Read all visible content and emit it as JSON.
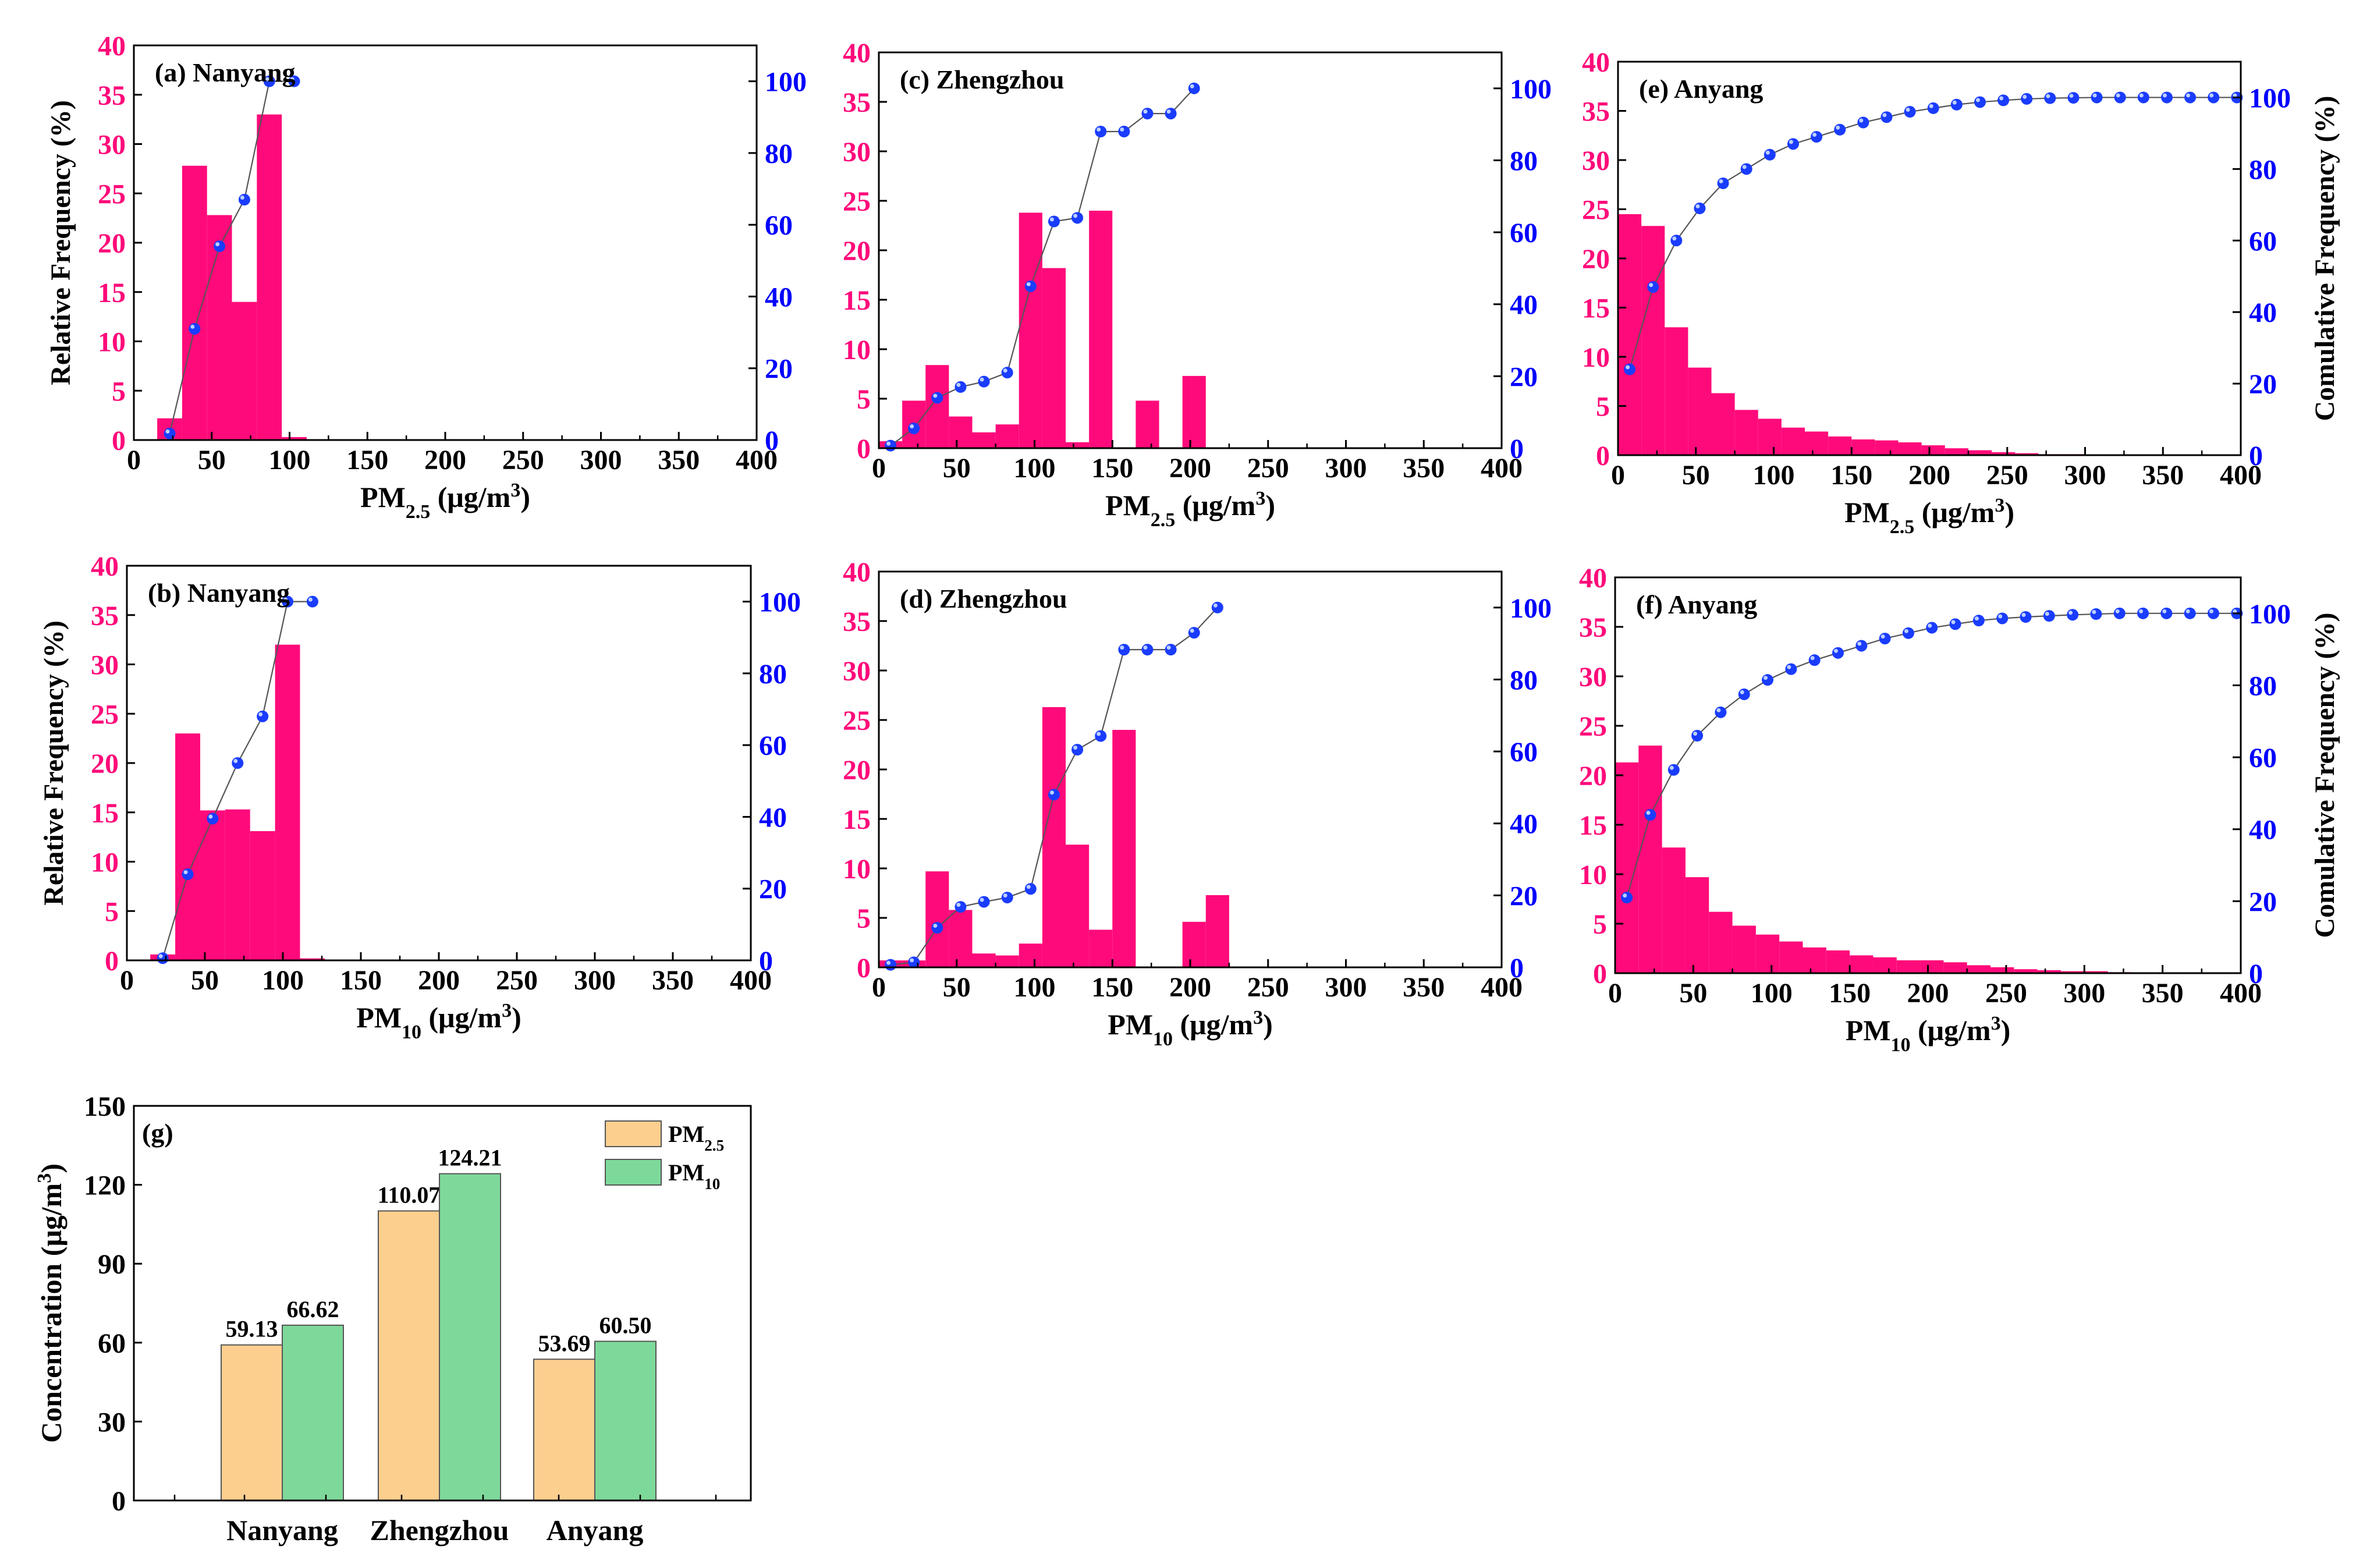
{
  "colors": {
    "bar": "#ff0a7a",
    "rel_axis": "#ff0a7a",
    "cum_axis": "#0000ff",
    "marker": "#1a3cff",
    "line": "#555555",
    "pm25_bar": "#fdcf8f",
    "pm10_bar": "#7dd99a",
    "axis": "#000000"
  },
  "chart_data": [
    {
      "id": "a",
      "type": "histogram+line",
      "title": "(a) Nanyang",
      "xlabel_main": "PM",
      "xlabel_sub": "2.5",
      "xlabel_unit": "(μg/m",
      "xlabel_sup": "3",
      "xlabel_close": ")",
      "ylabel": "Relative Frequency (%)",
      "y2label": "",
      "xlim": [
        0,
        400
      ],
      "ylim": [
        0,
        40
      ],
      "y2lim": [
        0,
        110
      ],
      "xticks": [
        "0",
        "50",
        "100",
        "150",
        "200",
        "250",
        "300",
        "350",
        "400"
      ],
      "yticks": [
        "0",
        "5",
        "10",
        "15",
        "20",
        "25",
        "30",
        "35",
        "40"
      ],
      "y2ticks": [
        "0",
        "20",
        "40",
        "60",
        "80",
        "100"
      ],
      "bin_width": 16,
      "bars": [
        [
          15,
          2.2
        ],
        [
          31,
          27.8
        ],
        [
          47,
          22.8
        ],
        [
          63,
          14
        ],
        [
          79,
          33
        ],
        [
          95,
          0.3
        ]
      ],
      "cumulative": [
        [
          23,
          1.8
        ],
        [
          39,
          31
        ],
        [
          55,
          54
        ],
        [
          71,
          67
        ],
        [
          87,
          100
        ],
        [
          103,
          100
        ]
      ]
    },
    {
      "id": "c",
      "type": "histogram+line",
      "title": "(c) Zhengzhou",
      "xlabel_main": "PM",
      "xlabel_sub": "2.5",
      "xlabel_unit": "(μg/m",
      "xlabel_sup": "3",
      "xlabel_close": ")",
      "ylabel": "",
      "y2label": "",
      "xlim": [
        0,
        400
      ],
      "ylim": [
        0,
        40
      ],
      "y2lim": [
        0,
        110
      ],
      "xticks": [
        "0",
        "50",
        "100",
        "150",
        "200",
        "250",
        "300",
        "350",
        "400"
      ],
      "yticks": [
        "0",
        "5",
        "10",
        "15",
        "20",
        "25",
        "30",
        "35",
        "40"
      ],
      "y2ticks": [
        "0",
        "20",
        "40",
        "60",
        "80",
        "100"
      ],
      "bin_width": 15,
      "bars": [
        [
          0,
          0.7
        ],
        [
          15,
          4.8
        ],
        [
          30,
          8.4
        ],
        [
          45,
          3.2
        ],
        [
          60,
          1.6
        ],
        [
          75,
          2.4
        ],
        [
          90,
          23.8
        ],
        [
          105,
          18.2
        ],
        [
          120,
          0.6
        ],
        [
          135,
          24
        ],
        [
          165,
          4.8
        ],
        [
          195,
          7.3
        ]
      ],
      "cumulative": [
        [
          7.5,
          0.7
        ],
        [
          22.5,
          5.5
        ],
        [
          37.5,
          14
        ],
        [
          52.5,
          17
        ],
        [
          67.5,
          18.5
        ],
        [
          82.5,
          21
        ],
        [
          97.5,
          45
        ],
        [
          112.5,
          63
        ],
        [
          127.5,
          64
        ],
        [
          142.5,
          88
        ],
        [
          157.5,
          88
        ],
        [
          172.5,
          93
        ],
        [
          187.5,
          93
        ],
        [
          202.5,
          100
        ]
      ]
    },
    {
      "id": "e",
      "type": "histogram+line",
      "title": "(e) Anyang",
      "xlabel_main": "PM",
      "xlabel_sub": "2.5",
      "xlabel_unit": "(μg/m",
      "xlabel_sup": "3",
      "xlabel_close": ")",
      "ylabel": "",
      "y2label": "Comulative Frequency (%)",
      "xlim": [
        0,
        400
      ],
      "ylim": [
        0,
        40
      ],
      "y2lim": [
        0,
        110
      ],
      "xticks": [
        "0",
        "50",
        "100",
        "150",
        "200",
        "250",
        "300",
        "350",
        "400"
      ],
      "yticks": [
        "0",
        "5",
        "10",
        "15",
        "20",
        "25",
        "30",
        "35",
        "40"
      ],
      "y2ticks": [
        "0",
        "20",
        "40",
        "60",
        "80",
        "100"
      ],
      "bin_width": 15,
      "bars": [
        [
          0,
          24.5
        ],
        [
          15,
          23.3
        ],
        [
          30,
          13
        ],
        [
          45,
          8.9
        ],
        [
          60,
          6.3
        ],
        [
          75,
          4.6
        ],
        [
          90,
          3.7
        ],
        [
          105,
          2.8
        ],
        [
          120,
          2.4
        ],
        [
          135,
          1.9
        ],
        [
          150,
          1.6
        ],
        [
          165,
          1.5
        ],
        [
          180,
          1.3
        ],
        [
          195,
          1
        ],
        [
          210,
          0.7
        ],
        [
          225,
          0.5
        ],
        [
          240,
          0.3
        ],
        [
          255,
          0.2
        ],
        [
          270,
          0.1
        ],
        [
          285,
          0.1
        ]
      ],
      "cumulative": [
        [
          7.5,
          24
        ],
        [
          22.5,
          47
        ],
        [
          37.5,
          60
        ],
        [
          52.5,
          69
        ],
        [
          67.5,
          76
        ],
        [
          82.5,
          80
        ],
        [
          97.5,
          84
        ],
        [
          112.5,
          87
        ],
        [
          127.5,
          89
        ],
        [
          142.5,
          91
        ],
        [
          157.5,
          93
        ],
        [
          172.5,
          94.5
        ],
        [
          187.5,
          96
        ],
        [
          202.5,
          97
        ],
        [
          217.5,
          98
        ],
        [
          232.5,
          98.7
        ],
        [
          247.5,
          99.2
        ],
        [
          262.5,
          99.6
        ],
        [
          277.5,
          99.8
        ],
        [
          292.5,
          99.9
        ],
        [
          307.5,
          100
        ],
        [
          322.5,
          100
        ],
        [
          337.5,
          100
        ],
        [
          352.5,
          100
        ],
        [
          367.5,
          100
        ],
        [
          382.5,
          100
        ],
        [
          397.5,
          100
        ]
      ]
    },
    {
      "id": "b",
      "type": "histogram+line",
      "title": "(b) Nanyang",
      "xlabel_main": "PM",
      "xlabel_sub": "10",
      "xlabel_unit": "(μg/m",
      "xlabel_sup": "3",
      "xlabel_close": ")",
      "ylabel": "Relative Frequency (%)",
      "y2label": "",
      "xlim": [
        0,
        400
      ],
      "ylim": [
        0,
        40
      ],
      "y2lim": [
        0,
        110
      ],
      "xticks": [
        "0",
        "50",
        "100",
        "150",
        "200",
        "250",
        "300",
        "350",
        "400"
      ],
      "yticks": [
        "0",
        "5",
        "10",
        "15",
        "20",
        "25",
        "30",
        "35",
        "40"
      ],
      "y2ticks": [
        "0",
        "20",
        "40",
        "60",
        "80",
        "100"
      ],
      "bin_width": 16,
      "bars": [
        [
          15,
          0.6
        ],
        [
          31,
          23
        ],
        [
          47,
          15.2
        ],
        [
          63,
          15.3
        ],
        [
          79,
          13.1
        ],
        [
          95,
          32
        ],
        [
          111,
          0.2
        ]
      ],
      "cumulative": [
        [
          23,
          0.6
        ],
        [
          39,
          24
        ],
        [
          55,
          39.5
        ],
        [
          71,
          55
        ],
        [
          87,
          68
        ],
        [
          103,
          100
        ],
        [
          119,
          100
        ]
      ]
    },
    {
      "id": "d",
      "type": "histogram+line",
      "title": "(d) Zhengzhou",
      "xlabel_main": "PM",
      "xlabel_sub": "10",
      "xlabel_unit": "(μg/m",
      "xlabel_sup": "3",
      "xlabel_close": ")",
      "ylabel": "",
      "y2label": "",
      "xlim": [
        0,
        400
      ],
      "ylim": [
        0,
        40
      ],
      "y2lim": [
        0,
        110
      ],
      "xticks": [
        "0",
        "50",
        "100",
        "150",
        "200",
        "250",
        "300",
        "350",
        "400"
      ],
      "yticks": [
        "0",
        "5",
        "10",
        "15",
        "20",
        "25",
        "30",
        "35",
        "40"
      ],
      "y2ticks": [
        "0",
        "20",
        "40",
        "60",
        "80",
        "100"
      ],
      "bin_width": 15,
      "bars": [
        [
          0,
          0.7
        ],
        [
          15,
          0.7
        ],
        [
          30,
          9.7
        ],
        [
          45,
          5.8
        ],
        [
          60,
          1.4
        ],
        [
          75,
          1.2
        ],
        [
          90,
          2.4
        ],
        [
          105,
          26.3
        ],
        [
          120,
          12.4
        ],
        [
          135,
          3.8
        ],
        [
          150,
          24
        ],
        [
          195,
          4.6
        ],
        [
          210,
          7.3
        ]
      ],
      "cumulative": [
        [
          7.5,
          0.7
        ],
        [
          22.5,
          1.4
        ],
        [
          37.5,
          11
        ],
        [
          52.5,
          16.8
        ],
        [
          67.5,
          18.2
        ],
        [
          82.5,
          19.4
        ],
        [
          97.5,
          21.8
        ],
        [
          112.5,
          48
        ],
        [
          127.5,
          60.5
        ],
        [
          142.5,
          64.3
        ],
        [
          157.5,
          88.3
        ],
        [
          172.5,
          88.3
        ],
        [
          187.5,
          88.3
        ],
        [
          202.5,
          93
        ],
        [
          217.5,
          100
        ]
      ]
    },
    {
      "id": "f",
      "type": "histogram+line",
      "title": "(f) Anyang",
      "xlabel_main": "PM",
      "xlabel_sub": "10",
      "xlabel_unit": "(μg/m",
      "xlabel_sup": "3",
      "xlabel_close": ")",
      "ylabel": "",
      "y2label": "Comulative Frequency (%)",
      "xlim": [
        0,
        400
      ],
      "ylim": [
        0,
        40
      ],
      "y2lim": [
        0,
        110
      ],
      "xticks": [
        "0",
        "50",
        "100",
        "150",
        "200",
        "250",
        "300",
        "350",
        "400"
      ],
      "yticks": [
        "0",
        "5",
        "10",
        "15",
        "20",
        "25",
        "30",
        "35",
        "40"
      ],
      "y2ticks": [
        "0",
        "20",
        "40",
        "60",
        "80",
        "100"
      ],
      "bin_width": 15,
      "bars": [
        [
          0,
          21.3
        ],
        [
          15,
          23
        ],
        [
          30,
          12.7
        ],
        [
          45,
          9.7
        ],
        [
          60,
          6.2
        ],
        [
          75,
          4.8
        ],
        [
          90,
          3.9
        ],
        [
          105,
          3.2
        ],
        [
          120,
          2.6
        ],
        [
          135,
          2.3
        ],
        [
          150,
          1.8
        ],
        [
          165,
          1.6
        ],
        [
          180,
          1.3
        ],
        [
          195,
          1.3
        ],
        [
          210,
          1.1
        ],
        [
          225,
          0.8
        ],
        [
          240,
          0.6
        ],
        [
          255,
          0.4
        ],
        [
          270,
          0.3
        ],
        [
          285,
          0.2
        ],
        [
          300,
          0.2
        ],
        [
          315,
          0.1
        ]
      ],
      "cumulative": [
        [
          7.5,
          21
        ],
        [
          22.5,
          44
        ],
        [
          37.5,
          56.5
        ],
        [
          52.5,
          66
        ],
        [
          67.5,
          72.5
        ],
        [
          82.5,
          77.5
        ],
        [
          97.5,
          81.5
        ],
        [
          112.5,
          84.5
        ],
        [
          127.5,
          87
        ],
        [
          142.5,
          89
        ],
        [
          157.5,
          91
        ],
        [
          172.5,
          93
        ],
        [
          187.5,
          94.5
        ],
        [
          202.5,
          96
        ],
        [
          217.5,
          97
        ],
        [
          232.5,
          98
        ],
        [
          247.5,
          98.6
        ],
        [
          262.5,
          99
        ],
        [
          277.5,
          99.3
        ],
        [
          292.5,
          99.6
        ],
        [
          307.5,
          99.8
        ],
        [
          322.5,
          100
        ],
        [
          337.5,
          100
        ],
        [
          352.5,
          100
        ],
        [
          367.5,
          100
        ],
        [
          382.5,
          100
        ],
        [
          397.5,
          100
        ]
      ]
    },
    {
      "id": "g",
      "type": "bar",
      "title": "(g)",
      "ylabel_main": "Concentration",
      "ylabel_unit": "(μg/m",
      "ylabel_sup": "3",
      "ylabel_close": ")",
      "ylim": [
        0,
        150
      ],
      "yticks": [
        "0",
        "30",
        "60",
        "90",
        "120",
        "150"
      ],
      "categories": [
        "Nanyang",
        "Zhengzhou",
        "Anyang"
      ],
      "series": [
        {
          "name_main": "PM",
          "name_sub": "2.5",
          "values": [
            59.13,
            110.07,
            53.69
          ],
          "labels": [
            "59.13",
            "110.07",
            "53.69"
          ]
        },
        {
          "name_main": "PM",
          "name_sub": "10",
          "values": [
            66.62,
            124.21,
            60.5
          ],
          "labels": [
            "66.62",
            "124.21",
            "60.50"
          ]
        }
      ],
      "legend_position": "top-right"
    }
  ]
}
